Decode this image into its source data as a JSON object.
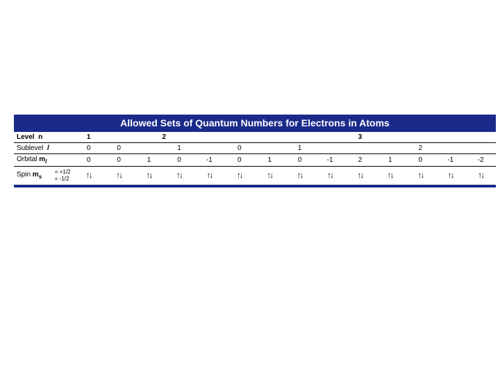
{
  "title": "Allowed Sets of Quantum Numbers for Electrons in Atoms",
  "colors": {
    "header_bg": "#1a2a8a",
    "header_fg": "#ffffff",
    "border": "#000000",
    "page_bg": "#ffffff"
  },
  "labels": {
    "level": "Level",
    "level_sym": "n",
    "sublevel": "Sublevel",
    "sublevel_sym": "l",
    "orbital": "Orbital",
    "orbital_sym": "m",
    "orbital_sub": "l",
    "spin": "Spin",
    "spin_sym": "m",
    "spin_sub": "s",
    "spin_up": "= +1/2",
    "spin_down": "= -1/2"
  },
  "cells": 14,
  "level_row": {
    "spans": [
      1,
      4,
      9
    ],
    "values": [
      "1",
      "2",
      "3"
    ]
  },
  "sublevel_row": {
    "spans": [
      1,
      1,
      3,
      1,
      3,
      5
    ],
    "values": [
      "0",
      "0",
      "1",
      "0",
      "1",
      "2"
    ]
  },
  "orbital_row": {
    "spans": [
      1,
      1,
      1,
      1,
      1,
      1,
      1,
      1,
      1,
      1,
      1,
      1,
      1,
      1
    ],
    "values": [
      "0",
      "0",
      "1",
      "0",
      "-1",
      "0",
      "1",
      "0",
      "-1",
      "2",
      "1",
      "0",
      "-1",
      "-2"
    ]
  },
  "spin_glyph": "↑↓"
}
